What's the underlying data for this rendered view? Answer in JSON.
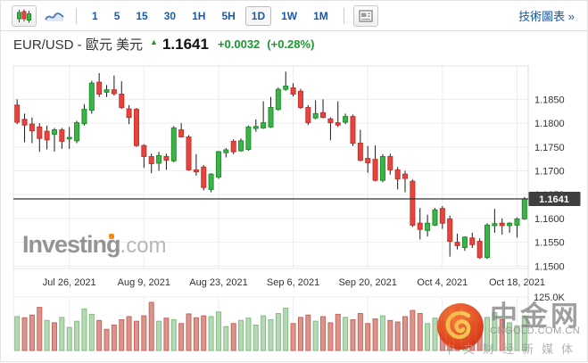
{
  "toolbar": {
    "chart_type_icons": [
      "candlestick-chart",
      "line-chart"
    ],
    "selected_chart_type": "candlestick-chart",
    "timeframes": [
      "1",
      "5",
      "15",
      "30",
      "1H",
      "5H",
      "1D",
      "1W",
      "1M"
    ],
    "selected_timeframe": "1D",
    "news_icon": "news-layout",
    "tech_chart_link": "技術圖表 »"
  },
  "quote": {
    "pair": "EUR/USD - 歐元 美元",
    "price": "1.1641",
    "change": "+0.0032",
    "change_pct": "(+0.28%)"
  },
  "watermark": {
    "brand": "Investing",
    "brand_suffix": ".com"
  },
  "cngold": {
    "name": "中金网",
    "domain": "CNGOLD.COM.CN",
    "tagline": "中文财经新媒体"
  },
  "colors": {
    "up": "#3cb44a",
    "up_border": "#1e8e2a",
    "down": "#e8433c",
    "down_border": "#c2332d",
    "wick": "#1a1a1a",
    "vol_up": "#b5d9b2",
    "vol_up_border": "#86bb86",
    "vol_down": "#dc938c",
    "vol_down_border": "#c4675f",
    "grid": "#ededed",
    "border": "#dddddd",
    "axis_text": "#333333",
    "price_line": "#333333",
    "tag_bg": "#3f3f3f",
    "tag_text": "#ffffff",
    "accent_blue": "#1c5aa5",
    "green_text": "#189a2e"
  },
  "chart_data": {
    "type": "candlestick",
    "title": "EUR/USD daily candlestick chart with volume",
    "last_price": 1.1641,
    "last_price_label": "1.1641",
    "ylim": [
      1.1495,
      1.192
    ],
    "y_ticks": [
      "1.1850",
      "1.1800",
      "1.1750",
      "1.1700",
      "1.1650",
      "1.1600",
      "1.1550",
      "1.1500"
    ],
    "x_ticks": [
      {
        "index": 7,
        "label": "Jul 26, 2021"
      },
      {
        "index": 17,
        "label": "Aug 9, 2021"
      },
      {
        "index": 27,
        "label": "Aug 23, 2021"
      },
      {
        "index": 37,
        "label": "Sep 6, 2021"
      },
      {
        "index": 47,
        "label": "Sep 20, 2021"
      },
      {
        "index": 57,
        "label": "Oct 4, 2021"
      },
      {
        "index": 67,
        "label": "Oct 18, 2021"
      }
    ],
    "volume_axis_label": "125.0K",
    "volume_max": 125,
    "candles": [
      [
        1.1838,
        1.185,
        1.1798,
        1.1802
      ],
      [
        1.1808,
        1.182,
        1.176,
        1.1796
      ],
      [
        1.1798,
        1.1812,
        1.1758,
        1.1784
      ],
      [
        1.1792,
        1.18,
        1.174,
        1.1768
      ],
      [
        1.1783,
        1.1795,
        1.1745,
        1.1765
      ],
      [
        1.1777,
        1.179,
        1.174,
        1.1786
      ],
      [
        1.1786,
        1.179,
        1.1746,
        1.1762
      ],
      [
        1.1768,
        1.1792,
        1.1746,
        1.177
      ],
      [
        1.1763,
        1.1805,
        1.1758,
        1.1801
      ],
      [
        1.1799,
        1.184,
        1.1795,
        1.1829
      ],
      [
        1.1827,
        1.1889,
        1.182,
        1.1884
      ],
      [
        1.1886,
        1.1905,
        1.1855,
        1.1861
      ],
      [
        1.1865,
        1.188,
        1.1855,
        1.187
      ],
      [
        1.187,
        1.19,
        1.1858,
        1.1862
      ],
      [
        1.1861,
        1.1888,
        1.183,
        1.1833
      ],
      [
        1.183,
        1.1838,
        1.1798,
        1.1812
      ],
      [
        1.1829,
        1.1832,
        1.175,
        1.1753
      ],
      [
        1.1753,
        1.1756,
        1.1706,
        1.173
      ],
      [
        1.173,
        1.1736,
        1.1695,
        1.1715
      ],
      [
        1.1716,
        1.174,
        1.17,
        1.1732
      ],
      [
        1.173,
        1.1736,
        1.1702,
        1.1722
      ],
      [
        1.1721,
        1.1794,
        1.1718,
        1.179
      ],
      [
        1.1786,
        1.18,
        1.177,
        1.1771
      ],
      [
        1.1771,
        1.1775,
        1.17,
        1.1702
      ],
      [
        1.1702,
        1.1735,
        1.169,
        1.1698
      ],
      [
        1.1708,
        1.1712,
        1.1659,
        1.1665
      ],
      [
        1.1661,
        1.1695,
        1.1655,
        1.1693
      ],
      [
        1.1687,
        1.1742,
        1.1683,
        1.174
      ],
      [
        1.1738,
        1.1748,
        1.1728,
        1.1744
      ],
      [
        1.1762,
        1.1766,
        1.1735,
        1.174
      ],
      [
        1.1742,
        1.1768,
        1.174,
        1.1763
      ],
      [
        1.1745,
        1.1795,
        1.1742,
        1.1792
      ],
      [
        1.1789,
        1.1808,
        1.1782,
        1.1793
      ],
      [
        1.179,
        1.1846,
        1.1788,
        1.1801
      ],
      [
        1.1792,
        1.1855,
        1.179,
        1.1833
      ],
      [
        1.1829,
        1.1875,
        1.1826,
        1.1871
      ],
      [
        1.1871,
        1.1908,
        1.1868,
        1.1878
      ],
      [
        1.1874,
        1.1884,
        1.1856,
        1.1861
      ],
      [
        1.1867,
        1.1872,
        1.183,
        1.1833
      ],
      [
        1.1833,
        1.1838,
        1.1796,
        1.1801
      ],
      [
        1.1811,
        1.1848,
        1.1808,
        1.182
      ],
      [
        1.1822,
        1.185,
        1.181,
        1.1812
      ],
      [
        1.1809,
        1.1812,
        1.1764,
        1.1801
      ],
      [
        1.1801,
        1.1846,
        1.1792,
        1.1796
      ],
      [
        1.1802,
        1.182,
        1.1798,
        1.1814
      ],
      [
        1.1814,
        1.1818,
        1.1752,
        1.1758
      ],
      [
        1.1758,
        1.1786,
        1.172,
        1.1722
      ],
      [
        1.1726,
        1.1752,
        1.1696,
        1.1717
      ],
      [
        1.1724,
        1.1753,
        1.1678,
        1.168
      ],
      [
        1.168,
        1.1735,
        1.1676,
        1.173
      ],
      [
        1.173,
        1.1736,
        1.1692,
        1.1702
      ],
      [
        1.1702,
        1.1708,
        1.1661,
        1.1683
      ],
      [
        1.1693,
        1.17,
        1.1655,
        1.1684
      ],
      [
        1.1678,
        1.1682,
        1.1582,
        1.1586
      ],
      [
        1.159,
        1.1622,
        1.1556,
        1.1577
      ],
      [
        1.1575,
        1.1608,
        1.1562,
        1.159
      ],
      [
        1.1586,
        1.1622,
        1.1584,
        1.1618
      ],
      [
        1.1621,
        1.1626,
        1.1578,
        1.159
      ],
      [
        1.1599,
        1.1606,
        1.152,
        1.1552
      ],
      [
        1.155,
        1.1568,
        1.1535,
        1.1543
      ],
      [
        1.1539,
        1.1562,
        1.1532,
        1.1561
      ],
      [
        1.1559,
        1.157,
        1.1538,
        1.1545
      ],
      [
        1.1552,
        1.1558,
        1.1515,
        1.1518
      ],
      [
        1.1518,
        1.159,
        1.1515,
        1.1586
      ],
      [
        1.1585,
        1.162,
        1.157,
        1.1589
      ],
      [
        1.159,
        1.16,
        1.1566,
        1.1585
      ],
      [
        1.1585,
        1.1592,
        1.157,
        1.159
      ],
      [
        1.1586,
        1.1602,
        1.156,
        1.1599
      ],
      [
        1.1599,
        1.1645,
        1.1597,
        1.1641
      ]
    ],
    "volumes_k": [
      88,
      85,
      92,
      112,
      78,
      72,
      86,
      60,
      76,
      108,
      94,
      78,
      55,
      66,
      80,
      88,
      76,
      90,
      125,
      76,
      84,
      80,
      70,
      95,
      85,
      90,
      88,
      100,
      62,
      70,
      78,
      84,
      66,
      90,
      80,
      96,
      110,
      70,
      86,
      92,
      76,
      88,
      72,
      94,
      86,
      80,
      96,
      70,
      82,
      90,
      78,
      74,
      88,
      104,
      96,
      70,
      84,
      78,
      92,
      112,
      64,
      76,
      70,
      86,
      98,
      80,
      72,
      64,
      90
    ],
    "volume_colors": [
      "g",
      "r",
      "r",
      "r",
      "g",
      "r",
      "g",
      "g",
      "g",
      "g",
      "g",
      "r",
      "r",
      "r",
      "r",
      "r",
      "r",
      "r",
      "r",
      "g",
      "r",
      "g",
      "r",
      "r",
      "r",
      "r",
      "g",
      "g",
      "g",
      "r",
      "g",
      "g",
      "g",
      "g",
      "g",
      "g",
      "g",
      "r",
      "r",
      "r",
      "g",
      "r",
      "r",
      "r",
      "g",
      "r",
      "r",
      "r",
      "r",
      "g",
      "r",
      "r",
      "r",
      "r",
      "r",
      "g",
      "g",
      "r",
      "r",
      "r",
      "g",
      "r",
      "r",
      "g",
      "g",
      "r",
      "g",
      "g",
      "g"
    ]
  }
}
